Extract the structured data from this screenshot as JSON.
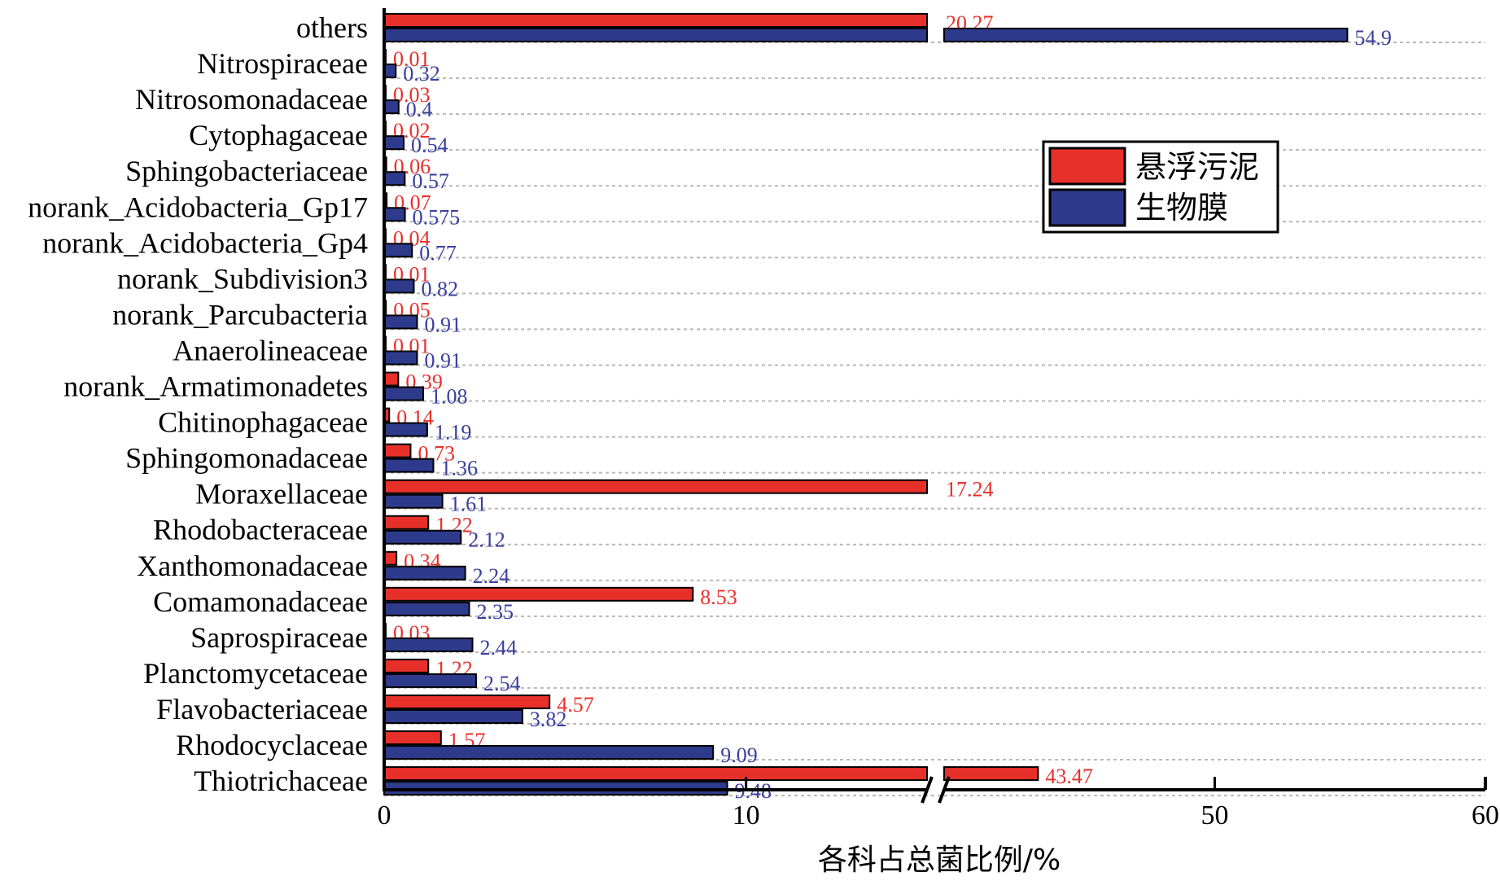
{
  "chart_data": {
    "type": "bar",
    "orientation": "horizontal",
    "broken_axis": true,
    "categories": [
      "others",
      "Nitrospiraceae",
      "Nitrosomonadaceae",
      "Cytophagaceae",
      "Sphingobacteriaceae",
      "norank_Acidobacteria_Gp17",
      "norank_Acidobacteria_Gp4",
      "norank_Subdivision3",
      "norank_Parcubacteria",
      "Anaerolineaceae",
      "norank_Armatimonadetes",
      "Chitinophagaceae",
      "Sphingomonadaceae",
      "Moraxellaceae",
      "Rhodobacteraceae",
      "Xanthomonadaceae",
      "Comamonadaceae",
      "Saprospiraceae",
      "Planctomycetaceae",
      "Flavobacteriaceae",
      "Rhodocyclaceae",
      "Thiotrichaceae"
    ],
    "series": [
      {
        "name": "悬浮污泥",
        "color": "#e8302b",
        "values": [
          20.27,
          0.01,
          0.03,
          0.02,
          0.06,
          0.07,
          0.04,
          0.01,
          0.05,
          0.01,
          0.39,
          0.14,
          0.73,
          17.24,
          1.22,
          0.34,
          8.53,
          0.03,
          1.22,
          4.57,
          1.57,
          43.47
        ],
        "labels": [
          "20.27",
          "0.01",
          "0.03",
          "0.02",
          "0.06",
          "0.07",
          "0.04",
          "0.01",
          "0.05",
          "0.01",
          "0.39",
          "0.14",
          "0.73",
          "17.24",
          "1.22",
          "0.34",
          "8.53",
          "0.03",
          "1.22",
          "4.57",
          "1.57",
          "43.47"
        ]
      },
      {
        "name": "生物膜",
        "color": "#2e3a8c",
        "values": [
          54.9,
          0.32,
          0.4,
          0.54,
          0.57,
          0.575,
          0.77,
          0.82,
          0.91,
          0.91,
          1.08,
          1.19,
          1.36,
          1.61,
          2.12,
          2.24,
          2.35,
          2.44,
          2.54,
          3.82,
          9.09,
          9.48
        ],
        "labels": [
          "54.9",
          "0.32",
          "0.4",
          "0.54",
          "0.57",
          "0.575",
          "0.77",
          "0.82",
          "0.91",
          "0.91",
          "1.08",
          "1.19",
          "1.36",
          "1.61",
          "2.12",
          "2.24",
          "2.35",
          "2.44",
          "2.54",
          "3.82",
          "9.09",
          "9.48"
        ]
      }
    ],
    "x_segments": [
      {
        "from": 0,
        "to": 15
      },
      {
        "from": 40,
        "to": 60
      }
    ],
    "x_ticks": [
      {
        "value": 0,
        "label": "0"
      },
      {
        "value": 10,
        "label": "10"
      },
      {
        "value": 50,
        "label": "50"
      },
      {
        "value": 60,
        "label": "60"
      }
    ],
    "xlabel": "各科占总菌比例/%",
    "ylabel": "",
    "legend_position": "upper-right",
    "grid": "horizontal dotted"
  }
}
